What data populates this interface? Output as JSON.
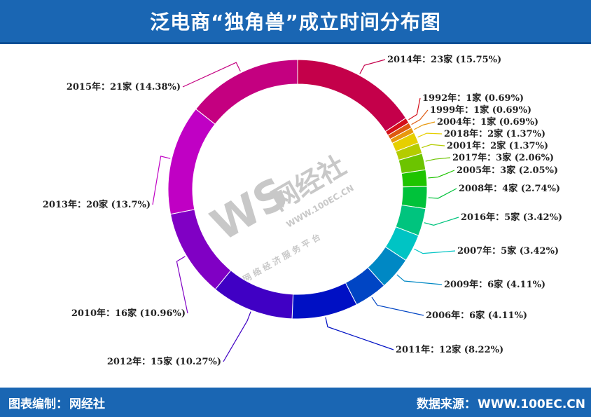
{
  "header": {
    "title": "泛电商“独角兽”成立时间分布图"
  },
  "footer": {
    "left_label": "图表编制：",
    "left_value": "网经社",
    "right_label": "数据来源：",
    "right_value": "WWW.100EC.CN"
  },
  "watermark": {
    "logo": "WS",
    "name": "网经社",
    "url": "WWW.100EC.CN",
    "slogan": "网 络 经 济 服 务 平 台"
  },
  "chart_data": {
    "type": "pie",
    "subtype": "donut",
    "slices": [
      {
        "label": "2014年：23家 (15.75%)",
        "year": "2014",
        "value": 23,
        "percent": 15.75,
        "color": "#c4004a"
      },
      {
        "label": "1992年：1家 (0.69%)",
        "year": "1992",
        "value": 1,
        "percent": 0.69,
        "color": "#d40f1a"
      },
      {
        "label": "1999年：1家 (0.69%)",
        "year": "1999",
        "value": 1,
        "percent": 0.69,
        "color": "#de5a10"
      },
      {
        "label": "2004年：1家 (0.69%)",
        "year": "2004",
        "value": 1,
        "percent": 0.69,
        "color": "#e8980e"
      },
      {
        "label": "2018年：2家 (1.37%)",
        "year": "2018",
        "value": 2,
        "percent": 1.37,
        "color": "#e6cf00"
      },
      {
        "label": "2001年：2家 (1.37%)",
        "year": "2001",
        "value": 2,
        "percent": 1.37,
        "color": "#b4cc00"
      },
      {
        "label": "2017年：3家 (2.06%)",
        "year": "2017",
        "value": 3,
        "percent": 2.06,
        "color": "#6cc400"
      },
      {
        "label": "2005年：3家 (2.05%)",
        "year": "2005",
        "value": 3,
        "percent": 2.05,
        "color": "#1ec400"
      },
      {
        "label": "2008年：4家 (2.74%)",
        "year": "2008",
        "value": 4,
        "percent": 2.74,
        "color": "#00c23a"
      },
      {
        "label": "2016年：5家 (3.42%)",
        "year": "2016",
        "value": 5,
        "percent": 3.42,
        "color": "#00c47e"
      },
      {
        "label": "2007年：5家 (3.42%)",
        "year": "2007",
        "value": 5,
        "percent": 3.42,
        "color": "#00c4c4"
      },
      {
        "label": "2009年：6家 (4.11%)",
        "year": "2009",
        "value": 6,
        "percent": 4.11,
        "color": "#0088c4"
      },
      {
        "label": "2006年：6家 (4.11%)",
        "year": "2006",
        "value": 6,
        "percent": 4.11,
        "color": "#0045c4"
      },
      {
        "label": "2011年：12家 (8.22%)",
        "year": "2011",
        "value": 12,
        "percent": 8.22,
        "color": "#0010c4"
      },
      {
        "label": "2012年：15家 (10.27%)",
        "year": "2012",
        "value": 15,
        "percent": 10.27,
        "color": "#4000c4"
      },
      {
        "label": "2010年：16家 (10.96%)",
        "year": "2010",
        "value": 16,
        "percent": 10.96,
        "color": "#8000c4"
      },
      {
        "label": "2013年：20家 (13.7%)",
        "year": "2013",
        "value": 20,
        "percent": 13.7,
        "color": "#c000c4"
      },
      {
        "label": "2015年：21家 (14.38%)",
        "year": "2015",
        "value": 21,
        "percent": 14.38,
        "color": "#c40080"
      }
    ]
  }
}
